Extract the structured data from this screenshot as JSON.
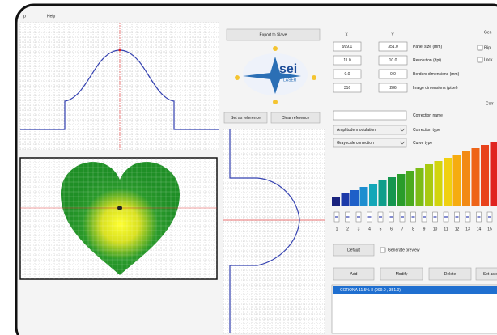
{
  "menu": [
    "lp",
    "Help"
  ],
  "buttons": {
    "export": "Export to Slave",
    "set_reference": "Set as reference",
    "clear_reference": "Clear reference",
    "default": "Default",
    "add": "Add",
    "modify": "Modify",
    "delete": "Delete",
    "set_default": "Set as def"
  },
  "logo": {
    "brand": "sei",
    "sub": "LASER"
  },
  "panel": {
    "headers": [
      "X",
      "Y"
    ],
    "rows": [
      {
        "x": "999.1",
        "y": "351.0",
        "label": "Panel size (mm)"
      },
      {
        "x": "11.0",
        "y": "10.0",
        "label": "Resolution (dpi)"
      },
      {
        "x": "0.0",
        "y": "0.0",
        "label": "Borders dimensions (mm)"
      },
      {
        "x": "316",
        "y": "286",
        "label": "Image dimensions (pixel)"
      }
    ]
  },
  "correction": {
    "name_label": "Correction name",
    "type_value": "Amplitude modulation",
    "type_label": "Correction type",
    "curve_value": "Grayscale correction",
    "curve_label": "Curve type"
  },
  "side": {
    "gen": "Gen",
    "flip": "Flip",
    "lock": "Lock",
    "corr": "Corr"
  },
  "slider_numbers": [
    "1",
    "2",
    "3",
    "4",
    "5",
    "6",
    "7",
    "8",
    "9",
    "10",
    "11",
    "12",
    "13",
    "14",
    "15"
  ],
  "generate_preview": "Generate preview",
  "list_items": [
    "CORONA 11.5% 8 (999.0 , 351.0)"
  ]
}
